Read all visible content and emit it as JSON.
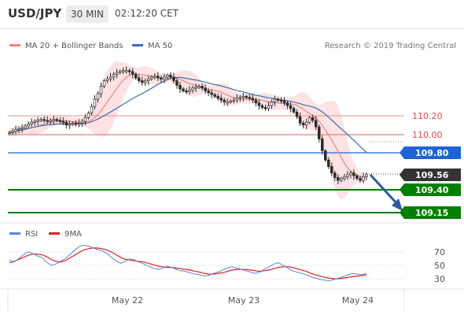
{
  "header": {
    "pair": "USD/JPY",
    "timeframe": "30 MIN",
    "time": "02:12:20 CET"
  },
  "legend": {
    "ma20_label": "MA 20 + Bollinger Bands",
    "ma50_label": "MA 50",
    "credit": "Research © 2019 Trading Central"
  },
  "colors": {
    "ma20": "#f08080",
    "bands": "#fde3e3",
    "ma50": "#3a6cb0",
    "candles": "#2b2b2b",
    "support": "#008000",
    "pivot": "#1e64d8",
    "current": "#333333",
    "resistance": "#e04848",
    "arrow": "#2a5aa8",
    "rsi": "#5b86d8",
    "rsi_ma": "#e02020"
  },
  "chart_data": [
    {
      "type": "candlestick",
      "instrument": "USD/JPY",
      "timeframe": "30 MIN",
      "x_ticks": [
        "May 22",
        "May 23",
        "May 24"
      ],
      "y_range": [
        109.12,
        110.5
      ],
      "close_approx": [
        110.02,
        110.03,
        110.05,
        110.06,
        110.07,
        110.09,
        110.11,
        110.13,
        110.14,
        110.15,
        110.16,
        110.15,
        110.14,
        110.15,
        110.16,
        110.15,
        110.14,
        110.13,
        110.1,
        110.11,
        110.12,
        110.11,
        110.12,
        110.14,
        110.18,
        110.23,
        110.3,
        110.38,
        110.44,
        110.52,
        110.58,
        110.6,
        110.62,
        110.65,
        110.67,
        110.68,
        110.69,
        110.69,
        110.68,
        110.65,
        110.61,
        110.58,
        110.56,
        110.58,
        110.6,
        110.62,
        110.63,
        110.61,
        110.6,
        110.62,
        110.64,
        110.62,
        110.58,
        110.53,
        110.49,
        110.47,
        110.46,
        110.48,
        110.5,
        110.51,
        110.52,
        110.5,
        110.47,
        110.45,
        110.43,
        110.41,
        110.39,
        110.37,
        110.35,
        110.35,
        110.36,
        110.37,
        110.39,
        110.4,
        110.41,
        110.4,
        110.39,
        110.37,
        110.34,
        110.31,
        110.29,
        110.28,
        110.31,
        110.35,
        110.38,
        110.37,
        110.36,
        110.34,
        110.31,
        110.28,
        110.24,
        110.19,
        110.12,
        110.1,
        110.13,
        110.18,
        110.15,
        110.08,
        109.95,
        109.82,
        109.72,
        109.65,
        109.58,
        109.53,
        109.5,
        109.52,
        109.54,
        109.56,
        109.58,
        109.55,
        109.52,
        109.5,
        109.54,
        109.56
      ],
      "indicators": [
        "MA 20 + Bollinger Bands",
        "MA 50"
      ],
      "levels": [
        {
          "value": 110.2,
          "label": "110.20",
          "role": "resistance"
        },
        {
          "value": 110.0,
          "label": "110.00",
          "role": "resistance"
        },
        {
          "value": 109.8,
          "label": "109.80",
          "role": "pivot"
        },
        {
          "value": 109.56,
          "label": "109.56",
          "role": "last price"
        },
        {
          "value": 109.4,
          "label": "109.40",
          "role": "support"
        },
        {
          "value": 109.15,
          "label": "109.15",
          "role": "support"
        }
      ],
      "projection": {
        "from": 109.56,
        "to": 109.15,
        "direction": "down"
      }
    },
    {
      "type": "line",
      "title": "RSI",
      "series": [
        {
          "name": "RSI",
          "values": [
            58,
            55,
            60,
            66,
            70,
            68,
            64,
            62,
            55,
            50,
            52,
            56,
            60,
            66,
            72,
            78,
            80,
            79,
            76,
            74,
            72,
            68,
            62,
            57,
            53,
            56,
            60,
            58,
            55,
            52,
            49,
            46,
            44,
            46,
            49,
            47,
            44,
            42,
            41,
            39,
            37,
            36,
            34,
            35,
            38,
            40,
            43,
            46,
            48,
            46,
            44,
            42,
            40,
            38,
            40,
            44,
            48,
            52,
            54,
            50,
            46,
            42,
            40,
            38,
            36,
            33,
            31,
            29,
            28,
            27,
            29,
            31,
            33,
            36,
            38,
            37,
            36,
            38
          ]
        },
        {
          "name": "9MA",
          "values": [
            54,
            56,
            59,
            62,
            65,
            67,
            67,
            66,
            63,
            59,
            56,
            55,
            57,
            61,
            65,
            69,
            73,
            75,
            76,
            76,
            75,
            73,
            70,
            66,
            62,
            59,
            58,
            57,
            56,
            55,
            53,
            51,
            49,
            48,
            47,
            47,
            46,
            45,
            44,
            43,
            41,
            40,
            38,
            37,
            37,
            38,
            39,
            41,
            43,
            44,
            44,
            44,
            43,
            42,
            41,
            42,
            43,
            45,
            47,
            48,
            48,
            47,
            45,
            43,
            41,
            38,
            36,
            34,
            32,
            31,
            30,
            30,
            31,
            32,
            33,
            34,
            35,
            36
          ]
        }
      ],
      "y_ticks": [
        "70",
        "50",
        "30"
      ]
    }
  ]
}
